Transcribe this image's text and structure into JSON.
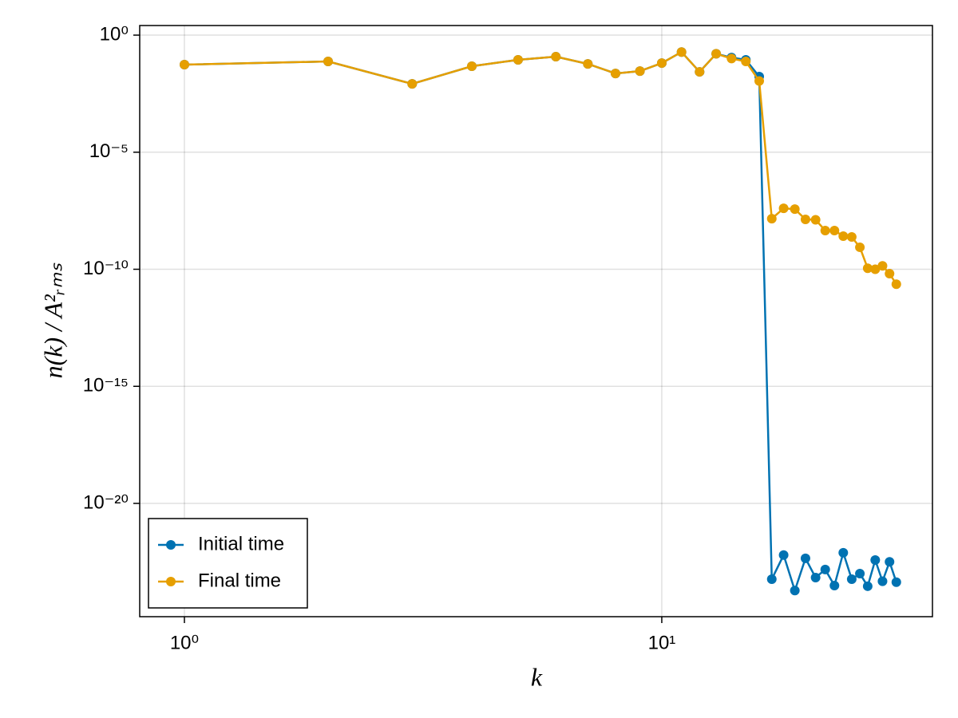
{
  "chart_data": {
    "type": "line",
    "xlabel": "k",
    "ylabel": "n(k) / A²ᵣₘₛ",
    "x": [
      1,
      2,
      3,
      4,
      5,
      6,
      7,
      8,
      9,
      10,
      11,
      12,
      13,
      14,
      15,
      16,
      17,
      18,
      19,
      20,
      21,
      22,
      23,
      24,
      25,
      26,
      27,
      28,
      29,
      30,
      31
    ],
    "series": [
      {
        "name": "Initial time",
        "color": "#0072b2",
        "values": [
          0.055,
          0.075,
          0.0083,
          0.047,
          0.088,
          0.12,
          0.059,
          0.023,
          0.029,
          0.064,
          0.19,
          0.027,
          0.16,
          0.11,
          0.088,
          0.017,
          5.8e-24,
          6.2e-23,
          1.9e-24,
          4.5e-23,
          6.8e-24,
          1.5e-23,
          3.1e-24,
          7.8e-23,
          5.8e-24,
          1e-23,
          2.9e-24,
          3.8e-23,
          4.7e-24,
          3.2e-23,
          4.3e-24
        ]
      },
      {
        "name": "Final time",
        "color": "#e69f00",
        "values": [
          0.055,
          0.075,
          0.0083,
          0.047,
          0.088,
          0.12,
          0.059,
          0.023,
          0.029,
          0.064,
          0.19,
          0.027,
          0.16,
          0.1,
          0.075,
          0.011,
          1.45e-08,
          4e-08,
          3.7e-08,
          1.35e-08,
          1.3e-08,
          4.5e-09,
          4.5e-09,
          2.6e-09,
          2.4e-09,
          8.7e-10,
          1.1e-10,
          1e-10,
          1.4e-10,
          6.5e-11,
          2.3e-11
        ]
      }
    ],
    "xscale": "log",
    "yscale": "log",
    "xlim": [
      0.806,
      36.9
    ],
    "ylim": [
      1.45e-25,
      2.57
    ],
    "xticks": [
      {
        "value": 1,
        "label": "10⁰"
      },
      {
        "value": 10,
        "label": "10¹"
      }
    ],
    "yticks": [
      {
        "value": 1e-20,
        "label": "10⁻²⁰"
      },
      {
        "value": 1e-15,
        "label": "10⁻¹⁵"
      },
      {
        "value": 1e-10,
        "label": "10⁻¹⁰"
      },
      {
        "value": 1e-05,
        "label": "10⁻⁵"
      },
      {
        "value": 1,
        "label": "10⁰"
      }
    ],
    "grid": true,
    "legend": "lower left"
  }
}
